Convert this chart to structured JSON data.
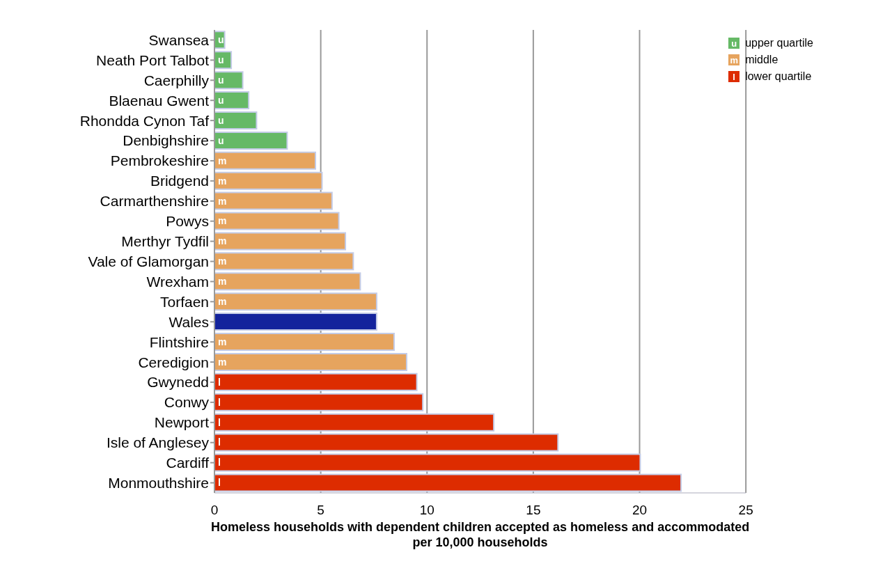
{
  "chart_data": {
    "type": "bar",
    "orientation": "horizontal",
    "stacked": true,
    "xlabel": "Homeless households with dependent children accepted as homeless and accommodated per 10,000 households",
    "categories": [
      "Swansea",
      "Neath Port Talbot",
      "Caerphilly",
      "Blaenau Gwent",
      "Rhondda Cynon Taf",
      "Denbighshire",
      "Pembrokeshire",
      "Bridgend",
      "Carmarthenshire",
      "Powys",
      "Merthyr Tydfil",
      "Vale of Glamorgan",
      "Wrexham",
      "Torfaen",
      "Wales",
      "Flintshire",
      "Ceredigion",
      "Gwynedd",
      "Conwy",
      "Newport",
      "Isle of Anglesey",
      "Cardiff",
      "Monmouthshire"
    ],
    "series": [
      {
        "name": "upper quartile",
        "color": "#66b966",
        "values": [
          0.48,
          0.79,
          1.33,
          1.61,
          1.98,
          3.42,
          null,
          null,
          null,
          null,
          null,
          null,
          null,
          null,
          null,
          null,
          null,
          null,
          null,
          null,
          null,
          null,
          null
        ],
        "value_labels": [
          "u",
          "u",
          "u",
          "u",
          "u",
          "u",
          null,
          null,
          null,
          null,
          null,
          null,
          null,
          null,
          null,
          null,
          null,
          null,
          null,
          null,
          null,
          null,
          null
        ]
      },
      {
        "name": "middle",
        "color": "#e6a45e",
        "values": [
          null,
          null,
          null,
          null,
          null,
          null,
          4.75,
          5.06,
          5.53,
          5.85,
          6.16,
          6.53,
          6.86,
          7.63,
          null,
          8.45,
          9.04,
          null,
          null,
          null,
          null,
          null,
          null
        ],
        "value_labels": [
          null,
          null,
          null,
          null,
          null,
          null,
          "m",
          "m",
          "m",
          "m",
          "m",
          "m",
          "m",
          "m",
          null,
          "m",
          "m",
          null,
          null,
          null,
          null,
          null,
          null
        ]
      },
      {
        "name": "lower quartile",
        "color": "#dd2c00",
        "values": [
          null,
          null,
          null,
          null,
          null,
          null,
          null,
          null,
          null,
          null,
          null,
          null,
          null,
          null,
          null,
          null,
          null,
          9.52,
          9.8,
          13.14,
          16.16,
          20.03,
          21.95
        ],
        "value_labels": [
          null,
          null,
          null,
          null,
          null,
          null,
          null,
          null,
          null,
          null,
          null,
          null,
          null,
          null,
          null,
          null,
          null,
          "l",
          "l",
          "l",
          "l",
          "l",
          "l"
        ]
      },
      {
        "color": "#13239c",
        "values": [
          null,
          null,
          null,
          null,
          null,
          null,
          null,
          null,
          null,
          null,
          null,
          null,
          null,
          null,
          7.63,
          null,
          null,
          null,
          null,
          null,
          null,
          null,
          null
        ]
      }
    ],
    "xlim": [
      0,
      25
    ],
    "xticks": [
      0,
      5,
      10,
      15,
      20,
      25
    ],
    "grid": "x",
    "legend": "top right"
  }
}
